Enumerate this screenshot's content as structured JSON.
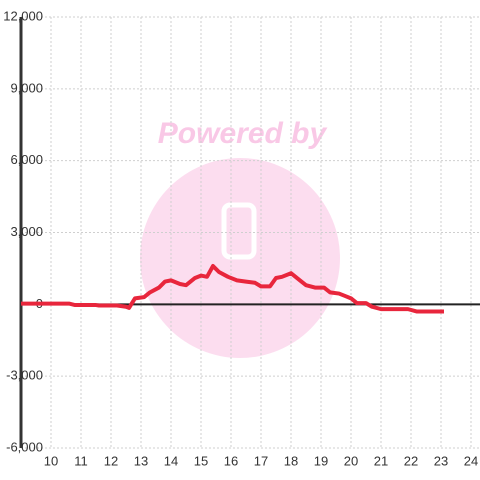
{
  "chart_data": {
    "type": "line",
    "watermark": "Powered by",
    "xlim": [
      9,
      24.3
    ],
    "xticks": [
      10,
      11,
      12,
      13,
      14,
      15,
      16,
      17,
      18,
      19,
      20,
      21,
      22,
      23,
      24
    ],
    "ylim": [
      -6000,
      12000
    ],
    "yticks": [
      {
        "value": -6000,
        "label": "-6,000"
      },
      {
        "value": -3000,
        "label": "-3,000"
      },
      0,
      {
        "value": 3000,
        "label": "3,000"
      },
      {
        "value": 6000,
        "label": "6,000"
      },
      {
        "value": 9000,
        "label": "9,000"
      },
      {
        "value": 12000,
        "label": "12,000"
      }
    ],
    "grid": true,
    "series": [
      {
        "color": "#e8263c",
        "x": [
          9,
          10.6,
          10.8,
          11.5,
          11.6,
          12.2,
          12.5,
          12.6,
          12.8,
          13.1,
          13.3,
          13.6,
          13.8,
          14.0,
          14.3,
          14.5,
          14.8,
          15.0,
          15.2,
          15.4,
          15.6,
          15.9,
          16.2,
          16.5,
          16.8,
          17.0,
          17.3,
          17.5,
          17.7,
          18.0,
          18.3,
          18.5,
          18.8,
          19.1,
          19.3,
          19.6,
          19.8,
          20.0,
          20.2,
          20.5,
          20.7,
          21.0,
          21.3,
          21.7,
          21.9,
          22.2,
          22.5,
          23.1
        ],
        "values": [
          30,
          30,
          -30,
          -30,
          -50,
          -50,
          -100,
          -150,
          250,
          300,
          500,
          700,
          950,
          1000,
          850,
          800,
          1100,
          1200,
          1150,
          1600,
          1350,
          1150,
          1000,
          950,
          900,
          750,
          750,
          1100,
          1150,
          1300,
          1000,
          800,
          700,
          700,
          500,
          450,
          350,
          250,
          50,
          50,
          -100,
          -200,
          -200,
          -200,
          -200,
          -300,
          -300,
          -300
        ]
      }
    ]
  }
}
